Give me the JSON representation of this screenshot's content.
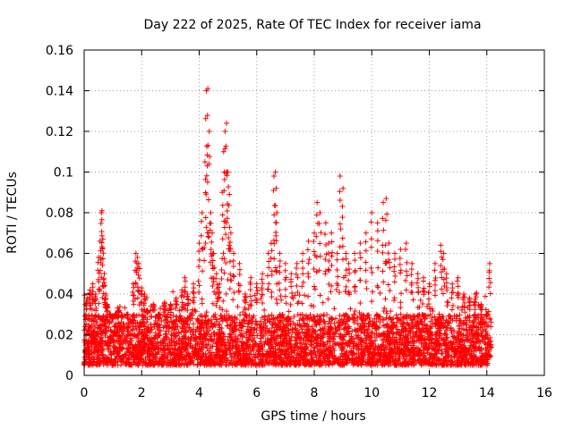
{
  "chart_data": {
    "type": "scatter",
    "title": "Day 222 of 2025, Rate Of TEC Index for receiver iama",
    "xlabel": "GPS time / hours",
    "ylabel": "ROTI / TECUs",
    "xlim": [
      0,
      16
    ],
    "ylim": [
      0,
      0.16
    ],
    "x_ticks": [
      0,
      2,
      4,
      6,
      8,
      10,
      12,
      14,
      16
    ],
    "x_tick_labels": [
      "0",
      "2",
      "4",
      "6",
      "8",
      "10",
      "12",
      "14",
      "16"
    ],
    "y_ticks": [
      0,
      0.02,
      0.04,
      0.06,
      0.08,
      0.1,
      0.12,
      0.14,
      0.16
    ],
    "y_tick_labels": [
      "0",
      "0.02",
      "0.04",
      "0.06",
      "0.08",
      "0.1",
      "0.12",
      "0.14",
      "0.16"
    ],
    "grid": true,
    "marker": "plus",
    "series_color": "#ff0000",
    "x_data_range": [
      0,
      14.15
    ],
    "baseline_band": [
      0.005,
      0.03
    ],
    "series": [
      {
        "name": "ROTI",
        "x": [
          0.1,
          0.2,
          0.3,
          0.4,
          0.5,
          0.55,
          0.6,
          0.62,
          0.65,
          0.7,
          0.75,
          0.8,
          0.9,
          1.0,
          1.1,
          1.2,
          1.3,
          1.5,
          1.7,
          1.8,
          1.85,
          1.9,
          2.0,
          2.1,
          2.2,
          2.4,
          2.6,
          2.8,
          3.0,
          3.2,
          3.4,
          3.5,
          3.6,
          3.8,
          4.0,
          4.1,
          4.2,
          4.25,
          4.3,
          4.35,
          4.4,
          4.45,
          4.5,
          4.6,
          4.7,
          4.8,
          4.85,
          4.9,
          4.95,
          5.0,
          5.05,
          5.1,
          5.2,
          5.4,
          5.6,
          5.8,
          6.0,
          6.2,
          6.4,
          6.5,
          6.6,
          6.65,
          6.7,
          6.8,
          7.0,
          7.2,
          7.4,
          7.6,
          7.8,
          8.0,
          8.1,
          8.2,
          8.4,
          8.5,
          8.6,
          8.8,
          8.9,
          9.0,
          9.1,
          9.2,
          9.4,
          9.6,
          9.8,
          10.0,
          10.2,
          10.4,
          10.5,
          10.6,
          10.8,
          11.0,
          11.2,
          11.4,
          11.6,
          11.8,
          12.0,
          12.2,
          12.4,
          12.5,
          12.6,
          12.8,
          13.0,
          13.2,
          13.4,
          13.6,
          13.8,
          14.0,
          14.1
        ],
        "y": [
          0.038,
          0.042,
          0.045,
          0.04,
          0.058,
          0.066,
          0.08,
          0.081,
          0.067,
          0.05,
          0.04,
          0.035,
          0.03,
          0.028,
          0.03,
          0.032,
          0.029,
          0.03,
          0.045,
          0.06,
          0.058,
          0.055,
          0.043,
          0.04,
          0.032,
          0.035,
          0.03,
          0.036,
          0.035,
          0.038,
          0.042,
          0.048,
          0.04,
          0.045,
          0.065,
          0.08,
          0.105,
          0.14,
          0.141,
          0.12,
          0.08,
          0.07,
          0.06,
          0.05,
          0.045,
          0.09,
          0.11,
          0.12,
          0.124,
          0.1,
          0.089,
          0.07,
          0.06,
          0.055,
          0.04,
          0.048,
          0.045,
          0.05,
          0.06,
          0.065,
          0.098,
          0.1,
          0.08,
          0.06,
          0.055,
          0.05,
          0.055,
          0.06,
          0.066,
          0.07,
          0.085,
          0.08,
          0.075,
          0.065,
          0.07,
          0.06,
          0.098,
          0.092,
          0.06,
          0.055,
          0.06,
          0.065,
          0.07,
          0.08,
          0.075,
          0.085,
          0.087,
          0.065,
          0.06,
          0.062,
          0.065,
          0.055,
          0.05,
          0.048,
          0.045,
          0.055,
          0.064,
          0.06,
          0.05,
          0.045,
          0.048,
          0.04,
          0.038,
          0.04,
          0.035,
          0.03,
          0.055
        ]
      }
    ]
  }
}
